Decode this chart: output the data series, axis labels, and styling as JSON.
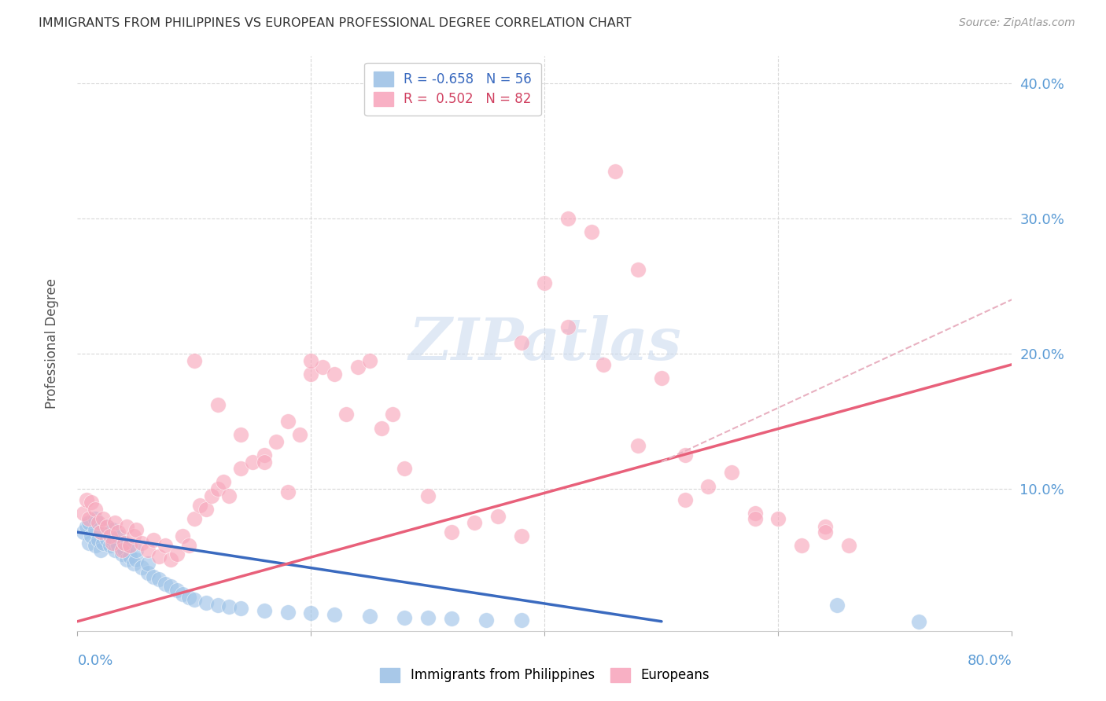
{
  "title": "IMMIGRANTS FROM PHILIPPINES VS EUROPEAN PROFESSIONAL DEGREE CORRELATION CHART",
  "source": "Source: ZipAtlas.com",
  "ylabel": "Professional Degree",
  "phil_color": "#a0c4e8",
  "euro_color": "#f8a8bc",
  "phil_line_color": "#3a6abf",
  "euro_line_color": "#e8607a",
  "euro_dashed_color": "#e8b0c0",
  "watermark_text": "ZIPatlas",
  "xlim": [
    0.0,
    0.8
  ],
  "ylim": [
    -0.005,
    0.42
  ],
  "ytick_vals": [
    0.0,
    0.1,
    0.2,
    0.3,
    0.4
  ],
  "ytick_labels": [
    "",
    "10.0%",
    "20.0%",
    "30.0%",
    "40.0%"
  ],
  "right_ytick_labels": [
    "",
    "10.0%",
    "20.0%",
    "30.0%",
    "40.0%"
  ],
  "phil_scatter_x": [
    0.005,
    0.008,
    0.01,
    0.01,
    0.012,
    0.015,
    0.015,
    0.015,
    0.018,
    0.02,
    0.02,
    0.022,
    0.025,
    0.025,
    0.028,
    0.03,
    0.03,
    0.032,
    0.035,
    0.035,
    0.038,
    0.04,
    0.04,
    0.042,
    0.045,
    0.045,
    0.048,
    0.05,
    0.05,
    0.055,
    0.06,
    0.06,
    0.065,
    0.07,
    0.075,
    0.08,
    0.085,
    0.09,
    0.095,
    0.1,
    0.11,
    0.12,
    0.13,
    0.14,
    0.16,
    0.18,
    0.2,
    0.22,
    0.25,
    0.28,
    0.3,
    0.32,
    0.35,
    0.38,
    0.65,
    0.72
  ],
  "phil_scatter_y": [
    0.068,
    0.072,
    0.06,
    0.075,
    0.065,
    0.058,
    0.07,
    0.078,
    0.062,
    0.055,
    0.068,
    0.06,
    0.063,
    0.072,
    0.058,
    0.062,
    0.07,
    0.055,
    0.058,
    0.065,
    0.052,
    0.055,
    0.06,
    0.048,
    0.05,
    0.058,
    0.045,
    0.048,
    0.055,
    0.042,
    0.038,
    0.045,
    0.035,
    0.033,
    0.03,
    0.028,
    0.025,
    0.022,
    0.02,
    0.018,
    0.016,
    0.014,
    0.013,
    0.012,
    0.01,
    0.009,
    0.008,
    0.007,
    0.006,
    0.005,
    0.005,
    0.004,
    0.003,
    0.003,
    0.014,
    0.002
  ],
  "euro_scatter_x": [
    0.005,
    0.008,
    0.01,
    0.012,
    0.015,
    0.018,
    0.02,
    0.022,
    0.025,
    0.028,
    0.03,
    0.032,
    0.035,
    0.038,
    0.04,
    0.042,
    0.045,
    0.048,
    0.05,
    0.055,
    0.06,
    0.065,
    0.07,
    0.075,
    0.08,
    0.085,
    0.09,
    0.095,
    0.1,
    0.105,
    0.11,
    0.115,
    0.12,
    0.125,
    0.13,
    0.14,
    0.15,
    0.16,
    0.17,
    0.18,
    0.19,
    0.2,
    0.21,
    0.22,
    0.23,
    0.24,
    0.25,
    0.26,
    0.27,
    0.28,
    0.3,
    0.32,
    0.34,
    0.36,
    0.38,
    0.4,
    0.42,
    0.44,
    0.46,
    0.48,
    0.5,
    0.52,
    0.54,
    0.56,
    0.58,
    0.6,
    0.62,
    0.64,
    0.66,
    0.38,
    0.42,
    0.45,
    0.48,
    0.52,
    0.1,
    0.12,
    0.14,
    0.16,
    0.18,
    0.2,
    0.58,
    0.64
  ],
  "euro_scatter_y": [
    0.082,
    0.092,
    0.078,
    0.09,
    0.085,
    0.075,
    0.068,
    0.078,
    0.072,
    0.065,
    0.06,
    0.075,
    0.068,
    0.055,
    0.06,
    0.072,
    0.058,
    0.065,
    0.07,
    0.06,
    0.055,
    0.062,
    0.05,
    0.058,
    0.048,
    0.052,
    0.065,
    0.058,
    0.078,
    0.088,
    0.085,
    0.095,
    0.1,
    0.105,
    0.095,
    0.115,
    0.12,
    0.125,
    0.135,
    0.15,
    0.14,
    0.185,
    0.19,
    0.185,
    0.155,
    0.19,
    0.195,
    0.145,
    0.155,
    0.115,
    0.095,
    0.068,
    0.075,
    0.08,
    0.065,
    0.252,
    0.3,
    0.29,
    0.335,
    0.262,
    0.182,
    0.125,
    0.102,
    0.112,
    0.082,
    0.078,
    0.058,
    0.072,
    0.058,
    0.208,
    0.22,
    0.192,
    0.132,
    0.092,
    0.195,
    0.162,
    0.14,
    0.12,
    0.098,
    0.195,
    0.078,
    0.068
  ],
  "phil_trend": [
    0.0,
    0.5,
    0.068,
    0.002
  ],
  "euro_trend": [
    0.0,
    0.8,
    0.002,
    0.192
  ],
  "euro_dashed": [
    0.5,
    0.8,
    0.12,
    0.24
  ]
}
